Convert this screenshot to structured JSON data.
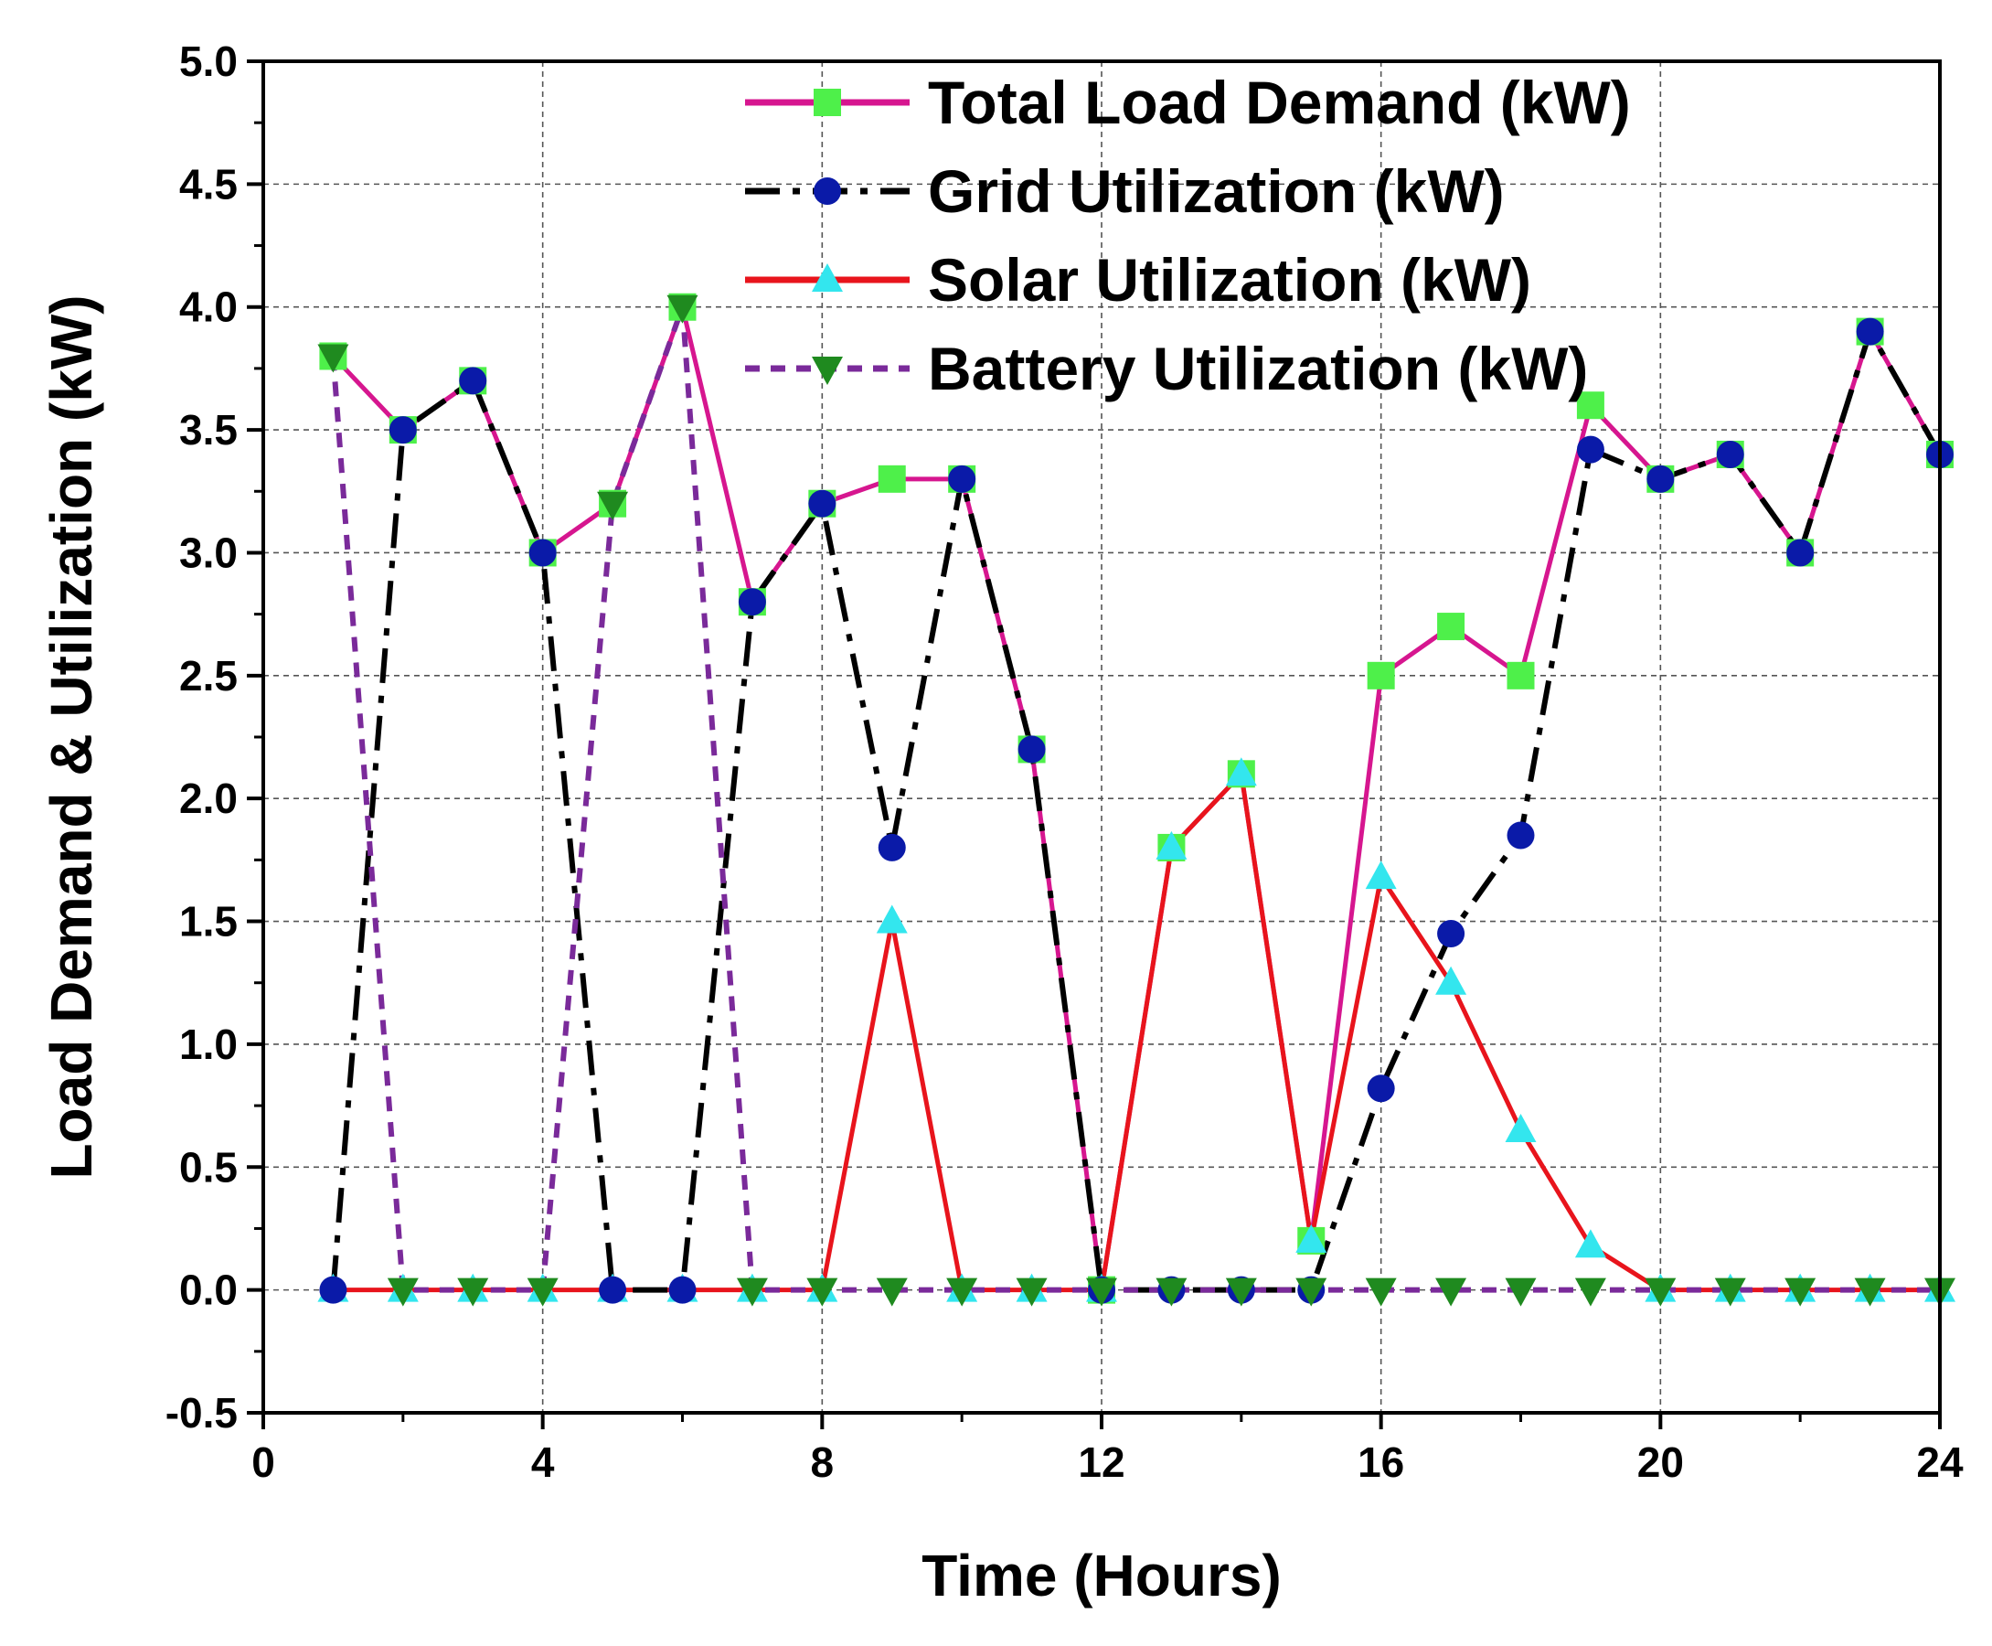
{
  "chart_data": {
    "type": "line",
    "title": "",
    "xlabel": "Time (Hours)",
    "ylabel": "Load Demand & Utilization (kW)",
    "xlim": [
      0,
      24
    ],
    "ylim": [
      -0.5,
      5.0
    ],
    "xticks": [
      0,
      4,
      8,
      12,
      16,
      20,
      24
    ],
    "xtick_labels": [
      "0",
      "4",
      "8",
      "12",
      "16",
      "20",
      "24"
    ],
    "yticks": [
      -0.5,
      0.0,
      0.5,
      1.0,
      1.5,
      2.0,
      2.5,
      3.0,
      3.5,
      4.0,
      4.5,
      5.0
    ],
    "ytick_labels": [
      "-0.5",
      "0.0",
      "0.5",
      "1.0",
      "1.5",
      "2.0",
      "2.5",
      "3.0",
      "3.5",
      "4.0",
      "4.5",
      "5.0"
    ],
    "grid": true,
    "legend_position": "top-right",
    "x": [
      1,
      2,
      3,
      4,
      5,
      6,
      7,
      8,
      9,
      10,
      11,
      12,
      13,
      14,
      15,
      16,
      17,
      18,
      19,
      20,
      21,
      22,
      23,
      24
    ],
    "series": [
      {
        "name": "Total Load Demand (kW)",
        "color": "#d6168f",
        "marker": "square",
        "marker_color": "#4ef04a",
        "dash": "solid",
        "values": [
          3.8,
          3.5,
          3.7,
          3.0,
          3.2,
          4.0,
          2.8,
          3.2,
          3.3,
          3.3,
          2.2,
          0.0,
          1.8,
          2.1,
          0.2,
          2.5,
          2.7,
          2.5,
          3.6,
          3.3,
          3.4,
          3.0,
          3.9,
          3.4
        ]
      },
      {
        "name": "Grid Utilization (kW)",
        "color": "#000000",
        "marker": "circle",
        "marker_color": "#0a1aa8",
        "dash": "dashdot",
        "values": [
          0.0,
          3.5,
          3.7,
          3.0,
          0.0,
          0.0,
          2.8,
          3.2,
          1.8,
          3.3,
          2.2,
          0.0,
          0.0,
          0.0,
          0.0,
          0.82,
          1.45,
          1.85,
          3.42,
          3.3,
          3.4,
          3.0,
          3.9,
          3.4
        ]
      },
      {
        "name": "Solar Utilization (kW)",
        "color": "#e8141c",
        "marker": "triangle-up",
        "marker_color": "#33e6ee",
        "dash": "solid",
        "values": [
          0.0,
          0.0,
          0.0,
          0.0,
          0.0,
          0.0,
          0.0,
          0.0,
          1.5,
          0.0,
          0.0,
          0.0,
          1.8,
          2.1,
          0.2,
          1.68,
          1.25,
          0.65,
          0.18,
          0.0,
          0.0,
          0.0,
          0.0,
          0.0
        ]
      },
      {
        "name": "Battery Utilization (kW)",
        "color": "#7a2a9a",
        "marker": "triangle-down",
        "marker_color": "#1f8a1f",
        "dash": "dashed",
        "values": [
          3.8,
          0.0,
          0.0,
          0.0,
          3.2,
          4.0,
          0.0,
          0.0,
          0.0,
          0.0,
          0.0,
          0.0,
          0.0,
          0.0,
          0.0,
          0.0,
          0.0,
          0.0,
          0.0,
          0.0,
          0.0,
          0.0,
          0.0,
          0.0
        ]
      }
    ]
  }
}
